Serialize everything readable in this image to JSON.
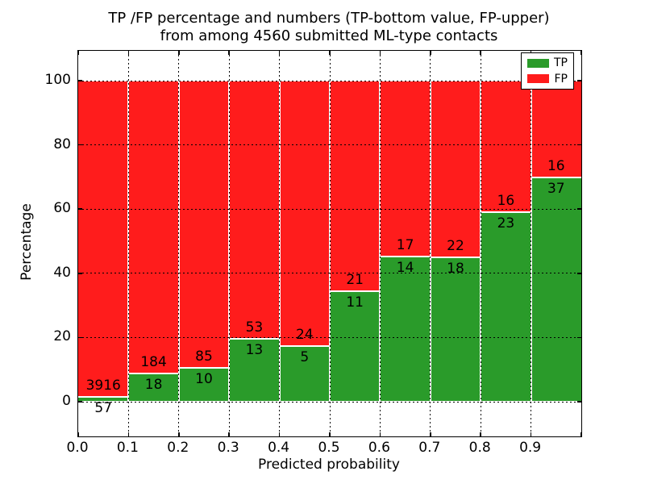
{
  "title": {
    "line1": "TP /FP percentage and numbers (TP-bottom value, FP-upper)",
    "line2": "from among 4560 submitted ML-type contacts"
  },
  "axes": {
    "xlabel": "Predicted probability",
    "ylabel": "Percentage",
    "x_tick_labels": [
      "0.0",
      "0.1",
      "0.2",
      "0.3",
      "0.4",
      "0.5",
      "0.6",
      "0.7",
      "0.8",
      "0.9"
    ],
    "y_tick_labels": [
      "0",
      "20",
      "40",
      "60",
      "80",
      "100"
    ]
  },
  "legend": {
    "items": [
      {
        "label": "TP",
        "color": "#2a9b2a"
      },
      {
        "label": "FP",
        "color": "#ff1c1c"
      }
    ]
  },
  "colors": {
    "tp_green": "#2a9b2a",
    "fp_red": "#ff1c1c",
    "grid": "#000000",
    "background": "#ffffff"
  },
  "chart_data": {
    "type": "bar",
    "subtype": "stacked-percentage",
    "title": "TP /FP percentage and numbers (TP-bottom value, FP-upper) from among 4560 submitted ML-type contacts",
    "xlabel": "Predicted probability",
    "ylabel": "Percentage",
    "categories": [
      "0.0",
      "0.1",
      "0.2",
      "0.3",
      "0.4",
      "0.5",
      "0.6",
      "0.7",
      "0.8",
      "0.9"
    ],
    "bin_width": 0.1,
    "series": [
      {
        "name": "TP",
        "color": "#2a9b2a",
        "counts": [
          57,
          18,
          10,
          13,
          5,
          11,
          14,
          18,
          23,
          37
        ]
      },
      {
        "name": "FP",
        "color": "#ff1c1c",
        "counts": [
          3916,
          184,
          85,
          53,
          24,
          21,
          17,
          22,
          16,
          16
        ]
      }
    ],
    "tp_percent": [
      1.43,
      8.91,
      10.53,
      19.7,
      17.24,
      34.38,
      45.16,
      45.0,
      58.97,
      69.81
    ],
    "total_contacts": 4560,
    "xlim": [
      0.0,
      1.0
    ],
    "ylim": [
      -10.7,
      109.3
    ],
    "y_ticks": [
      0,
      20,
      40,
      60,
      80,
      100
    ],
    "grid": true,
    "legend_position": "upper right"
  }
}
